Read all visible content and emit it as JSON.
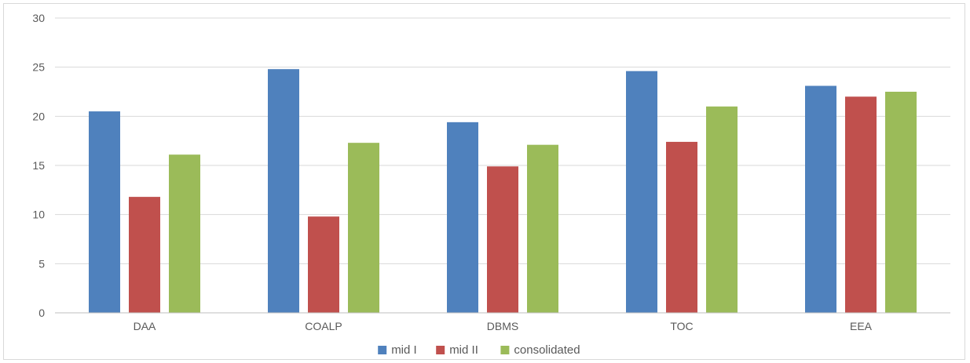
{
  "chart_data": {
    "type": "bar",
    "title": "",
    "xlabel": "",
    "ylabel": "",
    "categories": [
      "DAA",
      "COALP",
      "DBMS",
      "TOC",
      "EEA"
    ],
    "ylim": [
      0,
      30
    ],
    "yticks": [
      0,
      5,
      10,
      15,
      20,
      25,
      30
    ],
    "grid": true,
    "legend_position": "bottom",
    "series": [
      {
        "name": "mid I",
        "color": "#4f81bd",
        "values": [
          20.5,
          24.8,
          19.4,
          24.6,
          23.1
        ]
      },
      {
        "name": "mid II",
        "color": "#c0504d",
        "values": [
          11.8,
          9.8,
          14.9,
          17.4,
          22.0
        ]
      },
      {
        "name": "consolidated",
        "color": "#9bbb59",
        "values": [
          16.1,
          17.3,
          17.1,
          21.0,
          22.5
        ]
      }
    ]
  }
}
